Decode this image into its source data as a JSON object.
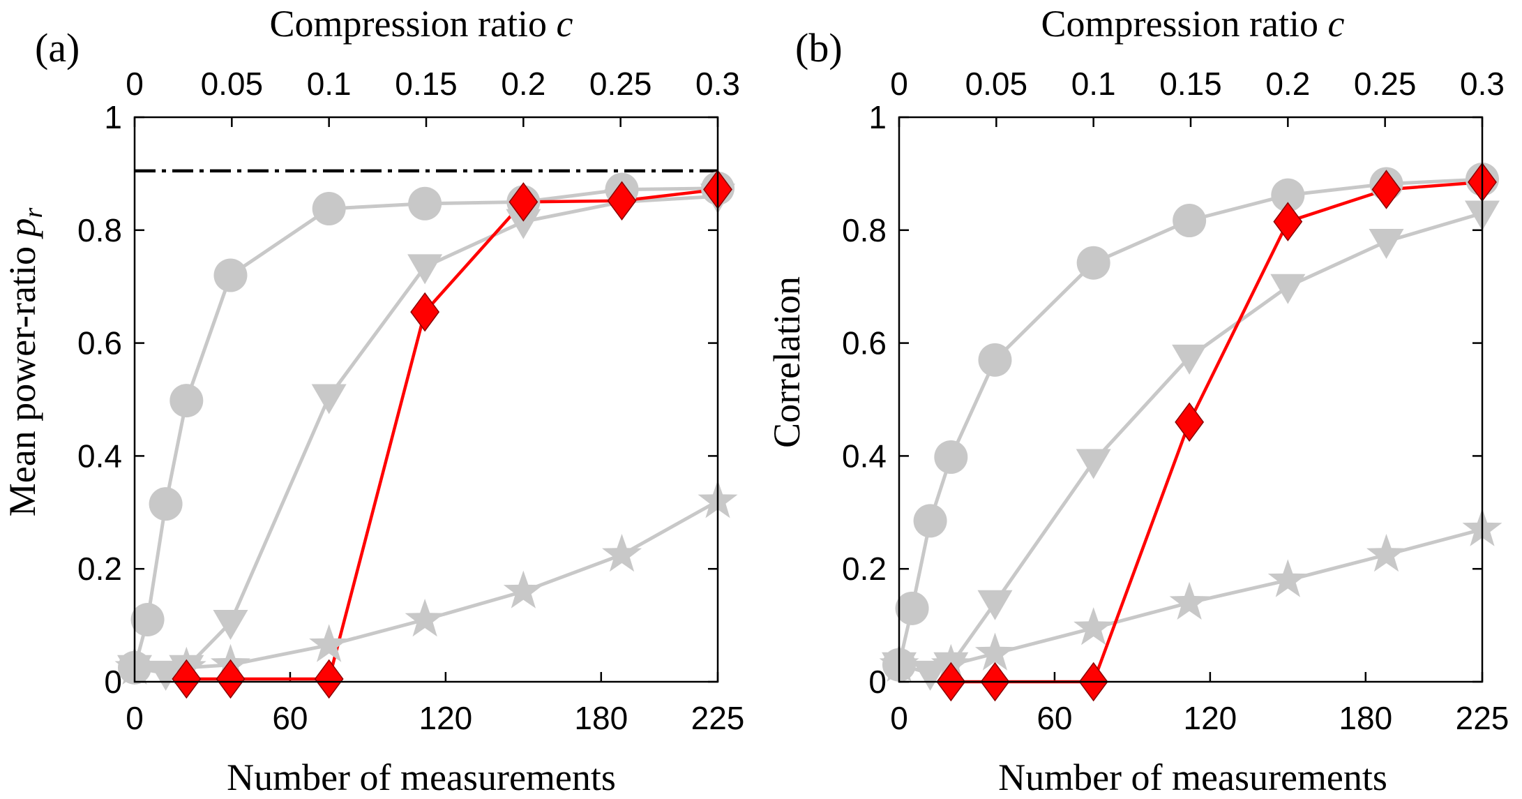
{
  "chart_data": [
    {
      "type": "line",
      "panel_label": "(a)",
      "xlabel": "Number of measurements",
      "ylabel": "Mean power-ratio ",
      "ylabel_symbol": "p",
      "ylabel_subscript": "r",
      "x2label": "Compression ratio ",
      "x2label_symbol": "c",
      "xlim": [
        0,
        225
      ],
      "ylim": [
        0,
        1
      ],
      "xticks": [
        0,
        60,
        120,
        180,
        225
      ],
      "yticks": [
        0,
        0.2,
        0.4,
        0.6,
        0.8,
        1
      ],
      "ytick_labels": [
        "0",
        "0.2",
        "0.4",
        "0.6",
        "0.8",
        "1"
      ],
      "x2ticks": [
        0,
        0.05,
        0.1,
        0.15,
        0.2,
        0.25,
        0.3
      ],
      "x2tick_labels": [
        "0",
        "0.05",
        "0.1",
        "0.15",
        "0.2",
        "0.25",
        "0.3"
      ],
      "reference_line": {
        "y": 0.905,
        "style": "dash-dot",
        "color": "#000000"
      },
      "series": [
        {
          "name": "circle",
          "marker": "circle",
          "color": "#c8c8c8",
          "x": [
            0,
            5,
            12,
            20,
            37,
            75,
            112,
            150,
            188,
            225
          ],
          "y": [
            0.025,
            0.11,
            0.315,
            0.498,
            0.72,
            0.838,
            0.847,
            0.85,
            0.872,
            0.874
          ]
        },
        {
          "name": "triangle",
          "marker": "triangle-down",
          "color": "#c8c8c8",
          "x": [
            0,
            12,
            20,
            37,
            75,
            112,
            150,
            188,
            225
          ],
          "y": [
            0.025,
            0.015,
            0.025,
            0.105,
            0.505,
            0.735,
            0.815,
            0.85,
            0.86
          ]
        },
        {
          "name": "star",
          "marker": "star",
          "color": "#c8c8c8",
          "x": [
            0,
            20,
            37,
            75,
            112,
            150,
            188,
            225
          ],
          "y": [
            0.025,
            0.025,
            0.03,
            0.065,
            0.11,
            0.16,
            0.225,
            0.32
          ]
        },
        {
          "name": "diamond",
          "marker": "diamond",
          "color": "#ff0000",
          "x": [
            20,
            37,
            75,
            112,
            150,
            188,
            225
          ],
          "y": [
            0.005,
            0.005,
            0.005,
            0.655,
            0.85,
            0.852,
            0.872
          ]
        }
      ]
    },
    {
      "type": "line",
      "panel_label": "(b)",
      "xlabel": "Number of measurements",
      "ylabel": "Correlation",
      "ylabel_symbol": "",
      "ylabel_subscript": "",
      "x2label": "Compression ratio ",
      "x2label_symbol": "c",
      "xlim": [
        0,
        225
      ],
      "ylim": [
        0,
        1
      ],
      "xticks": [
        0,
        60,
        120,
        180,
        225
      ],
      "yticks": [
        0,
        0.2,
        0.4,
        0.6,
        0.8,
        1
      ],
      "ytick_labels": [
        "0",
        "0.2",
        "0.4",
        "0.6",
        "0.8",
        "1"
      ],
      "x2ticks": [
        0,
        0.05,
        0.1,
        0.15,
        0.2,
        0.25,
        0.3
      ],
      "x2tick_labels": [
        "0",
        "0.05",
        "0.1",
        "0.15",
        "0.2",
        "0.25",
        "0.3"
      ],
      "series": [
        {
          "name": "circle",
          "marker": "circle",
          "color": "#c8c8c8",
          "x": [
            0,
            5,
            12,
            20,
            37,
            75,
            112,
            150,
            188,
            225
          ],
          "y": [
            0.03,
            0.13,
            0.285,
            0.398,
            0.57,
            0.742,
            0.817,
            0.862,
            0.882,
            0.89
          ]
        },
        {
          "name": "triangle",
          "marker": "triangle-down",
          "color": "#c8c8c8",
          "x": [
            0,
            12,
            20,
            37,
            75,
            112,
            150,
            188,
            225
          ],
          "y": [
            0.03,
            0.015,
            0.03,
            0.14,
            0.39,
            0.575,
            0.7,
            0.78,
            0.83
          ]
        },
        {
          "name": "star",
          "marker": "star",
          "color": "#c8c8c8",
          "x": [
            0,
            20,
            37,
            75,
            112,
            150,
            188,
            225
          ],
          "y": [
            0.03,
            0.03,
            0.05,
            0.095,
            0.14,
            0.18,
            0.225,
            0.27
          ]
        },
        {
          "name": "diamond",
          "marker": "diamond",
          "color": "#ff0000",
          "x": [
            20,
            37,
            75,
            112,
            150,
            188,
            225
          ],
          "y": [
            0,
            0,
            0,
            0.46,
            0.815,
            0.872,
            0.885
          ]
        }
      ]
    }
  ]
}
